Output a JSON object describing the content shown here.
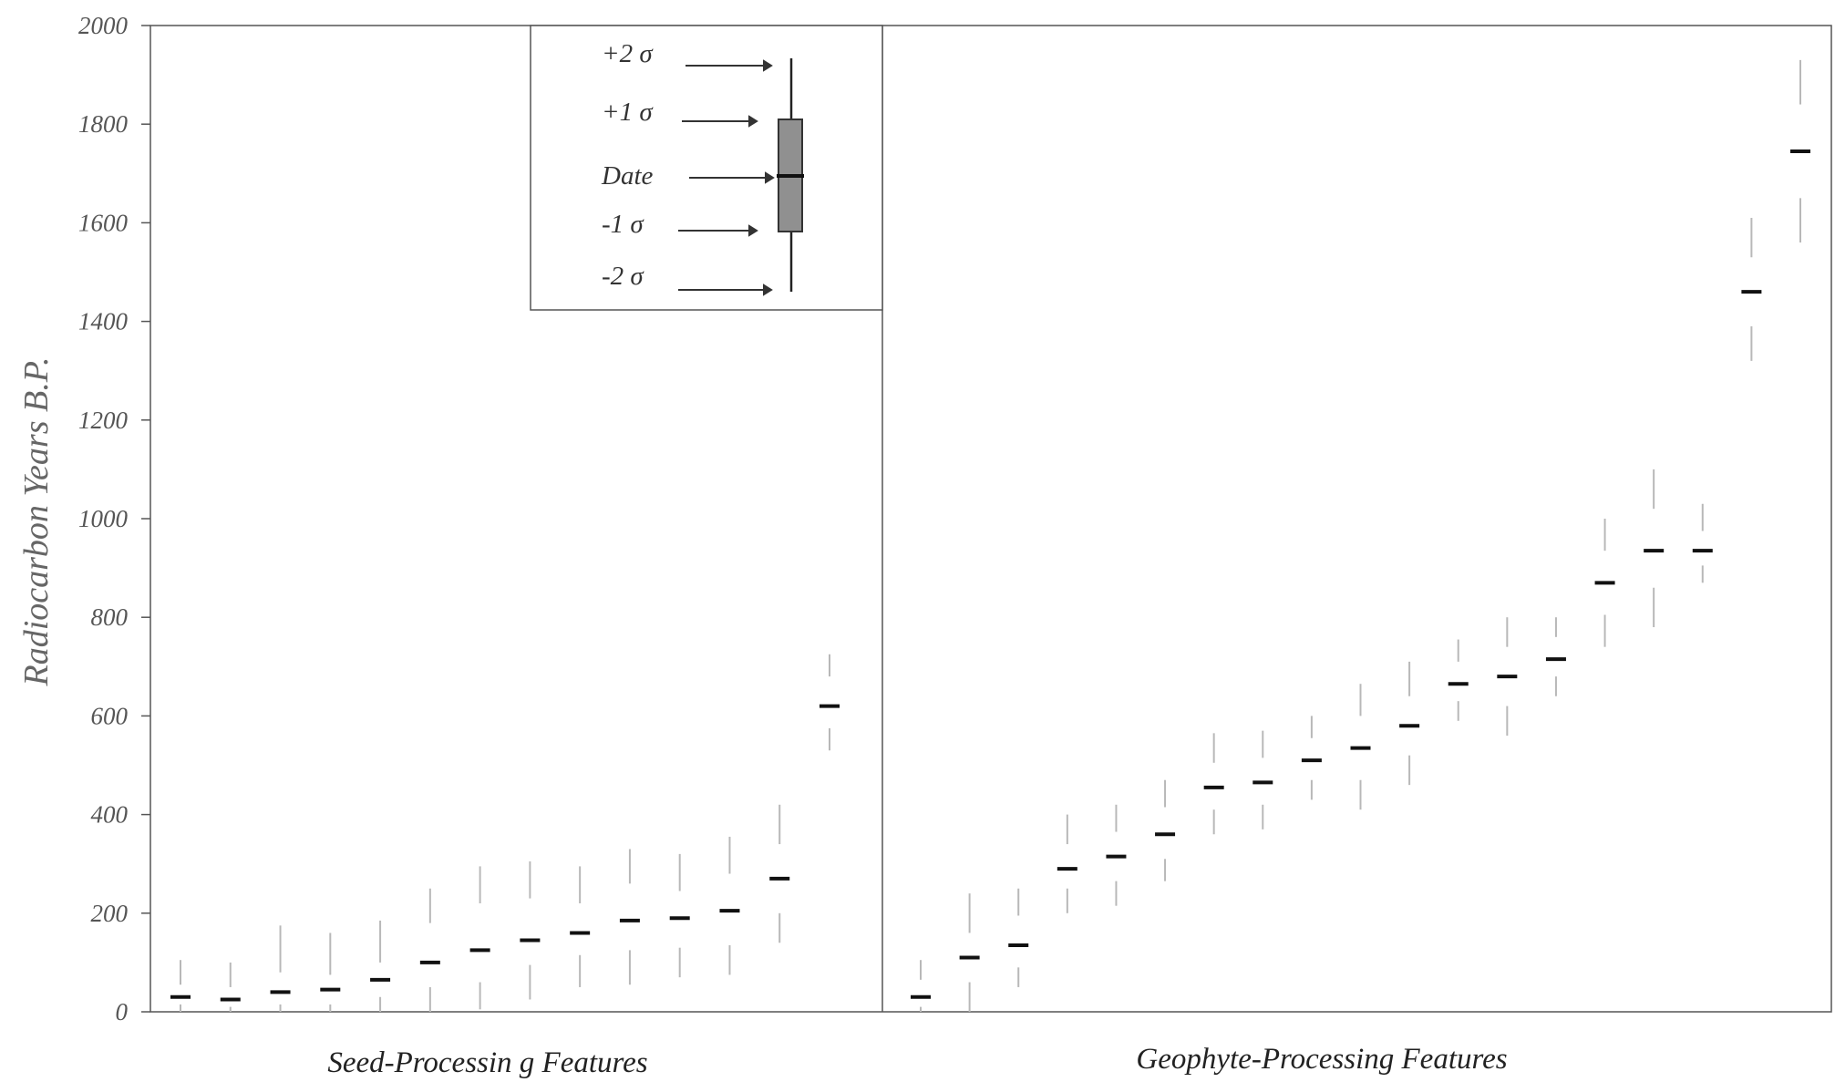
{
  "chart_data": {
    "type": "box",
    "ylabel": "Radiocarbon Years B.P.",
    "ylim": [
      0,
      2000
    ],
    "yticks": [
      "0",
      "200",
      "400",
      "600",
      "800",
      "1000",
      "1200",
      "1400",
      "1600",
      "1800",
      "2000"
    ],
    "groups": [
      {
        "name": "Seed-Processin g Features",
        "dates": [
          {
            "date": 30,
            "minus2": 0,
            "minus1": 15,
            "plus1": 55,
            "plus2": 105
          },
          {
            "date": 25,
            "minus2": 0,
            "minus1": 10,
            "plus1": 50,
            "plus2": 100
          },
          {
            "date": 40,
            "minus2": 0,
            "minus1": 15,
            "plus1": 80,
            "plus2": 175
          },
          {
            "date": 45,
            "minus2": 0,
            "minus1": 15,
            "plus1": 75,
            "plus2": 160
          },
          {
            "date": 65,
            "minus2": 0,
            "minus1": 30,
            "plus1": 100,
            "plus2": 185
          },
          {
            "date": 100,
            "minus2": 0,
            "minus1": 50,
            "plus1": 180,
            "plus2": 250
          },
          {
            "date": 125,
            "minus2": 5,
            "minus1": 60,
            "plus1": 220,
            "plus2": 295
          },
          {
            "date": 145,
            "minus2": 25,
            "minus1": 95,
            "plus1": 230,
            "plus2": 305
          },
          {
            "date": 160,
            "minus2": 50,
            "minus1": 115,
            "plus1": 220,
            "plus2": 295
          },
          {
            "date": 185,
            "minus2": 55,
            "minus1": 125,
            "plus1": 260,
            "plus2": 330
          },
          {
            "date": 190,
            "minus2": 70,
            "minus1": 130,
            "plus1": 245,
            "plus2": 320
          },
          {
            "date": 205,
            "minus2": 75,
            "minus1": 135,
            "plus1": 280,
            "plus2": 355
          },
          {
            "date": 270,
            "minus2": 140,
            "minus1": 200,
            "plus1": 340,
            "plus2": 420
          },
          {
            "date": 620,
            "minus2": 530,
            "minus1": 575,
            "plus1": 680,
            "plus2": 725
          }
        ]
      },
      {
        "name": "Geophyte-Processing Features",
        "dates": [
          {
            "date": 30,
            "minus2": 0,
            "minus1": 10,
            "plus1": 65,
            "plus2": 105
          },
          {
            "date": 110,
            "minus2": 0,
            "minus1": 60,
            "plus1": 160,
            "plus2": 240
          },
          {
            "date": 135,
            "minus2": 50,
            "minus1": 90,
            "plus1": 195,
            "plus2": 250
          },
          {
            "date": 290,
            "minus2": 200,
            "minus1": 250,
            "plus1": 340,
            "plus2": 400
          },
          {
            "date": 315,
            "minus2": 215,
            "minus1": 265,
            "plus1": 365,
            "plus2": 420
          },
          {
            "date": 360,
            "minus2": 265,
            "minus1": 310,
            "plus1": 415,
            "plus2": 470
          },
          {
            "date": 455,
            "minus2": 360,
            "minus1": 410,
            "plus1": 505,
            "plus2": 565
          },
          {
            "date": 465,
            "minus2": 370,
            "minus1": 420,
            "plus1": 515,
            "plus2": 570
          },
          {
            "date": 510,
            "minus2": 430,
            "minus1": 470,
            "plus1": 555,
            "plus2": 600
          },
          {
            "date": 535,
            "minus2": 410,
            "minus1": 470,
            "plus1": 600,
            "plus2": 665
          },
          {
            "date": 580,
            "minus2": 460,
            "minus1": 520,
            "plus1": 640,
            "plus2": 710
          },
          {
            "date": 665,
            "minus2": 590,
            "minus1": 630,
            "plus1": 710,
            "plus2": 755
          },
          {
            "date": 680,
            "minus2": 560,
            "minus1": 620,
            "plus1": 740,
            "plus2": 800
          },
          {
            "date": 715,
            "minus2": 640,
            "minus1": 680,
            "plus1": 760,
            "plus2": 800
          },
          {
            "date": 870,
            "minus2": 740,
            "minus1": 805,
            "plus1": 935,
            "plus2": 1000
          },
          {
            "date": 935,
            "minus2": 780,
            "minus1": 860,
            "plus1": 1020,
            "plus2": 1100
          },
          {
            "date": 935,
            "minus2": 870,
            "minus1": 905,
            "plus1": 975,
            "plus2": 1030
          },
          {
            "date": 1460,
            "minus2": 1320,
            "minus1": 1390,
            "plus1": 1530,
            "plus2": 1610
          },
          {
            "date": 1745,
            "minus2": 1560,
            "minus1": 1650,
            "plus1": 1840,
            "plus2": 1930
          }
        ]
      }
    ],
    "legend": {
      "placement": "top-center",
      "labels": [
        "+2 σ",
        "+1 σ",
        "Date",
        "-1 σ",
        "-2 σ"
      ]
    }
  },
  "colors": {
    "axis": "#555555",
    "whisker": "#b8b8b8",
    "date_marker": "#111111",
    "legend_box_fill": "#909090"
  }
}
